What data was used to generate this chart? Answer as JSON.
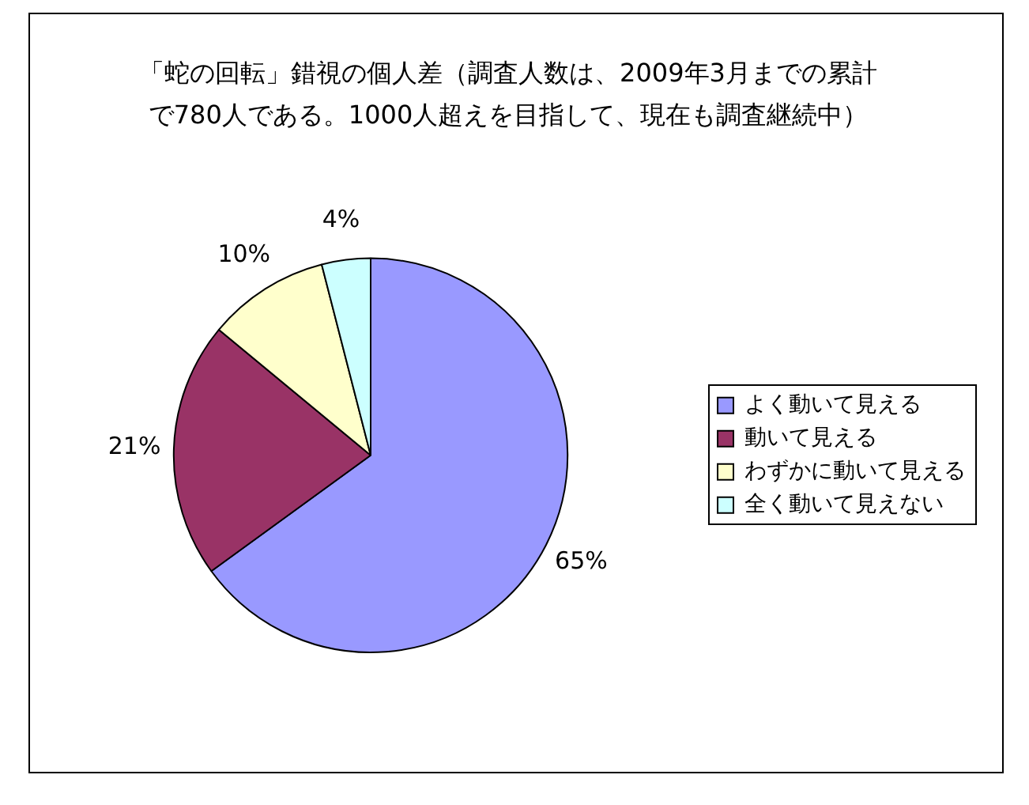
{
  "chart_data": {
    "type": "pie",
    "title": "「蛇の回転」錯視の個人差（調査人数は、2009年3月までの累計で780人である。1000人超えを目指して、現在も調査継続中）",
    "categories": [
      "よく動いて見える",
      "動いて見える",
      "わずかに動いて見える",
      "全く動いて見えない"
    ],
    "values": [
      65,
      21,
      10,
      4
    ],
    "colors": [
      "#9999ff",
      "#993366",
      "#ffffcc",
      "#ccffff"
    ],
    "value_labels": [
      "65%",
      "21%",
      "10%",
      "4%"
    ],
    "legend": "right"
  }
}
